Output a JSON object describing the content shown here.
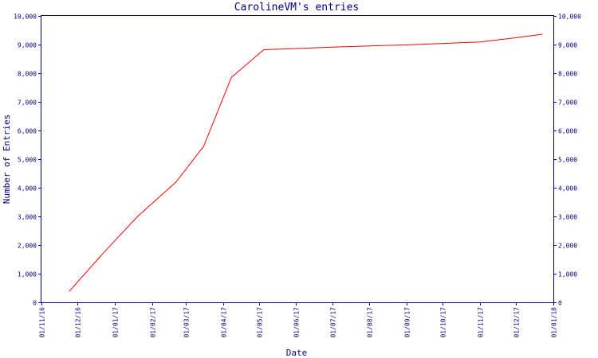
{
  "chart_data": {
    "type": "line",
    "title": "CarolineVM's entries",
    "xlabel": "Date",
    "ylabel": "Number of Entries",
    "grid": false,
    "legend": "none",
    "colors": {
      "axis": "#000080",
      "line": "#ff0000",
      "background": "#ffffff"
    },
    "xlim": [
      "2016-11-01",
      "2018-01-01"
    ],
    "ylim": [
      0,
      10000
    ],
    "x_tick_labels": [
      "01/11/16",
      "01/12/16",
      "01/01/17",
      "01/02/17",
      "01/03/17",
      "01/04/17",
      "01/05/17",
      "01/06/17",
      "01/07/17",
      "01/08/17",
      "01/09/17",
      "01/10/17",
      "01/11/17",
      "01/12/17",
      "01/01/18"
    ],
    "x_tick_dates": [
      "2016-11-01",
      "2016-12-01",
      "2017-01-01",
      "2017-02-01",
      "2017-03-01",
      "2017-04-01",
      "2017-05-01",
      "2017-06-01",
      "2017-07-01",
      "2017-08-01",
      "2017-09-01",
      "2017-10-01",
      "2017-11-01",
      "2017-12-01",
      "2018-01-01"
    ],
    "y_ticks": [
      0,
      1000,
      2000,
      3000,
      4000,
      5000,
      6000,
      7000,
      8000,
      9000,
      10000
    ],
    "y_tick_labels": [
      "0",
      "1,000",
      "2,000",
      "3,000",
      "4,000",
      "5,000",
      "6,000",
      "7,000",
      "8,000",
      "9,000",
      "10,000"
    ],
    "series": [
      {
        "x": [
          "2016-11-24",
          "2016-12-22",
          "2017-01-20",
          "2017-02-21",
          "2017-03-16",
          "2017-04-08",
          "2017-05-05",
          "2017-06-01",
          "2017-07-01",
          "2017-08-01",
          "2017-09-01",
          "2017-10-01",
          "2017-11-01",
          "2017-12-01",
          "2017-12-23"
        ],
        "values": [
          380,
          1700,
          3000,
          4200,
          5450,
          7850,
          8820,
          8860,
          8910,
          8950,
          8990,
          9040,
          9090,
          9240,
          9360
        ]
      }
    ]
  }
}
